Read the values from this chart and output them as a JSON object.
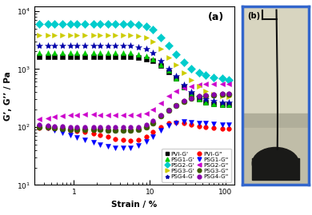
{
  "title_a": "(a)",
  "xlabel": "Strain / %",
  "ylabel": "G’, G’’ / Pa",
  "xlim": [
    0.3,
    130
  ],
  "ylim": [
    15,
    12000
  ],
  "series": {
    "PVI_Gp": {
      "label": "PVI-G’",
      "color": "black",
      "marker": "s",
      "x": [
        0.35,
        0.45,
        0.55,
        0.7,
        0.9,
        1.1,
        1.4,
        1.8,
        2.2,
        2.8,
        3.5,
        4.5,
        5.5,
        7.0,
        9.0,
        11,
        14,
        18,
        22,
        28,
        35,
        45,
        55,
        70,
        90,
        110
      ],
      "y": [
        1650,
        1650,
        1650,
        1650,
        1650,
        1650,
        1650,
        1650,
        1650,
        1650,
        1650,
        1650,
        1650,
        1600,
        1500,
        1400,
        1150,
        900,
        680,
        490,
        360,
        300,
        270,
        250,
        245,
        240
      ],
      "ms": 4
    },
    "PVI_Gpp": {
      "label": "PVI-G’’",
      "color": "#ff0000",
      "marker": "o",
      "x": [
        0.35,
        0.45,
        0.55,
        0.7,
        0.9,
        1.1,
        1.4,
        1.8,
        2.2,
        2.8,
        3.5,
        4.5,
        5.5,
        7.0,
        9.0,
        11,
        14,
        18,
        22,
        28,
        35,
        45,
        55,
        70,
        90,
        110
      ],
      "y": [
        95,
        95,
        92,
        90,
        88,
        85,
        82,
        78,
        72,
        68,
        62,
        60,
        58,
        60,
        68,
        82,
        100,
        115,
        120,
        118,
        110,
        102,
        98,
        96,
        94,
        93
      ],
      "ms": 4
    },
    "PSG1_Gp": {
      "label": "PSG1-G’",
      "color": "#00cc00",
      "marker": "^",
      "x": [
        0.35,
        0.45,
        0.55,
        0.7,
        0.9,
        1.1,
        1.4,
        1.8,
        2.2,
        2.8,
        3.5,
        4.5,
        5.5,
        7.0,
        9.0,
        11,
        14,
        18,
        22,
        28,
        35,
        45,
        55,
        70,
        90,
        110
      ],
      "y": [
        1900,
        1900,
        1900,
        1900,
        1900,
        1900,
        1900,
        1900,
        1900,
        1900,
        1900,
        1900,
        1900,
        1800,
        1700,
        1500,
        1200,
        950,
        700,
        480,
        360,
        300,
        270,
        250,
        240,
        240
      ],
      "ms": 5
    },
    "PSG1_Gpp": {
      "label": "PSG1-G’’",
      "color": "#0000ff",
      "marker": "v",
      "x": [
        0.35,
        0.45,
        0.55,
        0.7,
        0.9,
        1.1,
        1.4,
        1.8,
        2.2,
        2.8,
        3.5,
        4.5,
        5.5,
        7.0,
        9.0,
        11,
        14,
        18,
        22,
        28,
        35,
        45,
        55,
        70,
        90,
        110
      ],
      "y": [
        100,
        95,
        88,
        80,
        72,
        66,
        60,
        55,
        50,
        46,
        44,
        43,
        44,
        48,
        56,
        68,
        88,
        105,
        118,
        125,
        122,
        118,
        115,
        112,
        110,
        110
      ],
      "ms": 5
    },
    "PSG2_Gp": {
      "label": "PSG2-G’",
      "color": "#00cccc",
      "marker": "D",
      "x": [
        0.35,
        0.45,
        0.55,
        0.7,
        0.9,
        1.1,
        1.4,
        1.8,
        2.2,
        2.8,
        3.5,
        4.5,
        5.5,
        7.0,
        9.0,
        11,
        14,
        18,
        22,
        28,
        35,
        45,
        55,
        70,
        90,
        110
      ],
      "y": [
        6000,
        6000,
        6000,
        6000,
        6000,
        6000,
        6000,
        6000,
        6000,
        6000,
        6000,
        6000,
        6000,
        5800,
        5500,
        4800,
        3500,
        2500,
        1800,
        1300,
        1000,
        850,
        780,
        720,
        680,
        650
      ],
      "ms": 5
    },
    "PSG2_Gpp": {
      "label": "PSG2-G’’",
      "color": "#cc00cc",
      "marker": "<",
      "x": [
        0.35,
        0.45,
        0.55,
        0.7,
        0.9,
        1.1,
        1.4,
        1.8,
        2.2,
        2.8,
        3.5,
        4.5,
        5.5,
        7.0,
        9.0,
        11,
        14,
        18,
        22,
        28,
        35,
        45,
        55,
        70,
        90,
        110
      ],
      "y": [
        135,
        142,
        148,
        155,
        160,
        162,
        163,
        163,
        162,
        160,
        158,
        158,
        158,
        160,
        172,
        200,
        255,
        340,
        410,
        470,
        505,
        530,
        545,
        552,
        558,
        560
      ],
      "ms": 5
    },
    "PSG3_Gp": {
      "label": "PSG3-G’",
      "color": "#cccc00",
      "marker": ">",
      "x": [
        0.35,
        0.45,
        0.55,
        0.7,
        0.9,
        1.1,
        1.4,
        1.8,
        2.2,
        2.8,
        3.5,
        4.5,
        5.5,
        7.0,
        9.0,
        11,
        14,
        18,
        22,
        28,
        35,
        45,
        55,
        70,
        90,
        110
      ],
      "y": [
        3800,
        3800,
        3800,
        3800,
        3800,
        3800,
        3800,
        3800,
        3800,
        3800,
        3800,
        3800,
        3800,
        3700,
        3500,
        3000,
        2200,
        1600,
        1200,
        850,
        640,
        500,
        420,
        370,
        340,
        330
      ],
      "ms": 5
    },
    "PSG3_Gpp": {
      "label": "PSG3-G’’",
      "color": "#3a5a00",
      "marker": "o",
      "x": [
        0.35,
        0.45,
        0.55,
        0.7,
        0.9,
        1.1,
        1.4,
        1.8,
        2.2,
        2.8,
        3.5,
        4.5,
        5.5,
        7.0,
        9.0,
        11,
        14,
        18,
        22,
        28,
        35,
        45,
        55,
        70,
        90,
        110
      ],
      "y": [
        98,
        98,
        95,
        92,
        90,
        90,
        90,
        90,
        90,
        88,
        88,
        88,
        88,
        90,
        98,
        118,
        155,
        195,
        235,
        278,
        312,
        335,
        348,
        358,
        363,
        368
      ],
      "ms": 5
    },
    "PSG4_Gp": {
      "label": "PSG4-G’",
      "color": "#0000aa",
      "marker": "*",
      "x": [
        0.35,
        0.45,
        0.55,
        0.7,
        0.9,
        1.1,
        1.4,
        1.8,
        2.2,
        2.8,
        3.5,
        4.5,
        5.5,
        7.0,
        9.0,
        11,
        14,
        18,
        22,
        28,
        35,
        45,
        55,
        70,
        90,
        110
      ],
      "y": [
        2500,
        2500,
        2500,
        2500,
        2500,
        2500,
        2500,
        2500,
        2500,
        2500,
        2500,
        2500,
        2500,
        2400,
        2200,
        1900,
        1400,
        1000,
        750,
        530,
        400,
        330,
        300,
        280,
        270,
        265
      ],
      "ms": 6
    },
    "PSG4_Gpp": {
      "label": "PSG4-G’’",
      "color": "#8800aa",
      "marker": "o",
      "x": [
        0.35,
        0.45,
        0.55,
        0.7,
        0.9,
        1.1,
        1.4,
        1.8,
        2.2,
        2.8,
        3.5,
        4.5,
        5.5,
        7.0,
        9.0,
        11,
        14,
        18,
        22,
        28,
        35,
        45,
        55,
        70,
        90,
        110
      ],
      "y": [
        108,
        106,
        104,
        102,
        100,
        100,
        100,
        100,
        100,
        100,
        100,
        100,
        100,
        100,
        108,
        128,
        158,
        196,
        236,
        280,
        315,
        340,
        356,
        368,
        373,
        378
      ],
      "ms": 4
    }
  },
  "photo_border_color": "#3366cc",
  "legend_fontsize": 5.2,
  "axis_label_fontsize": 7.5,
  "tick_fontsize": 6.5
}
